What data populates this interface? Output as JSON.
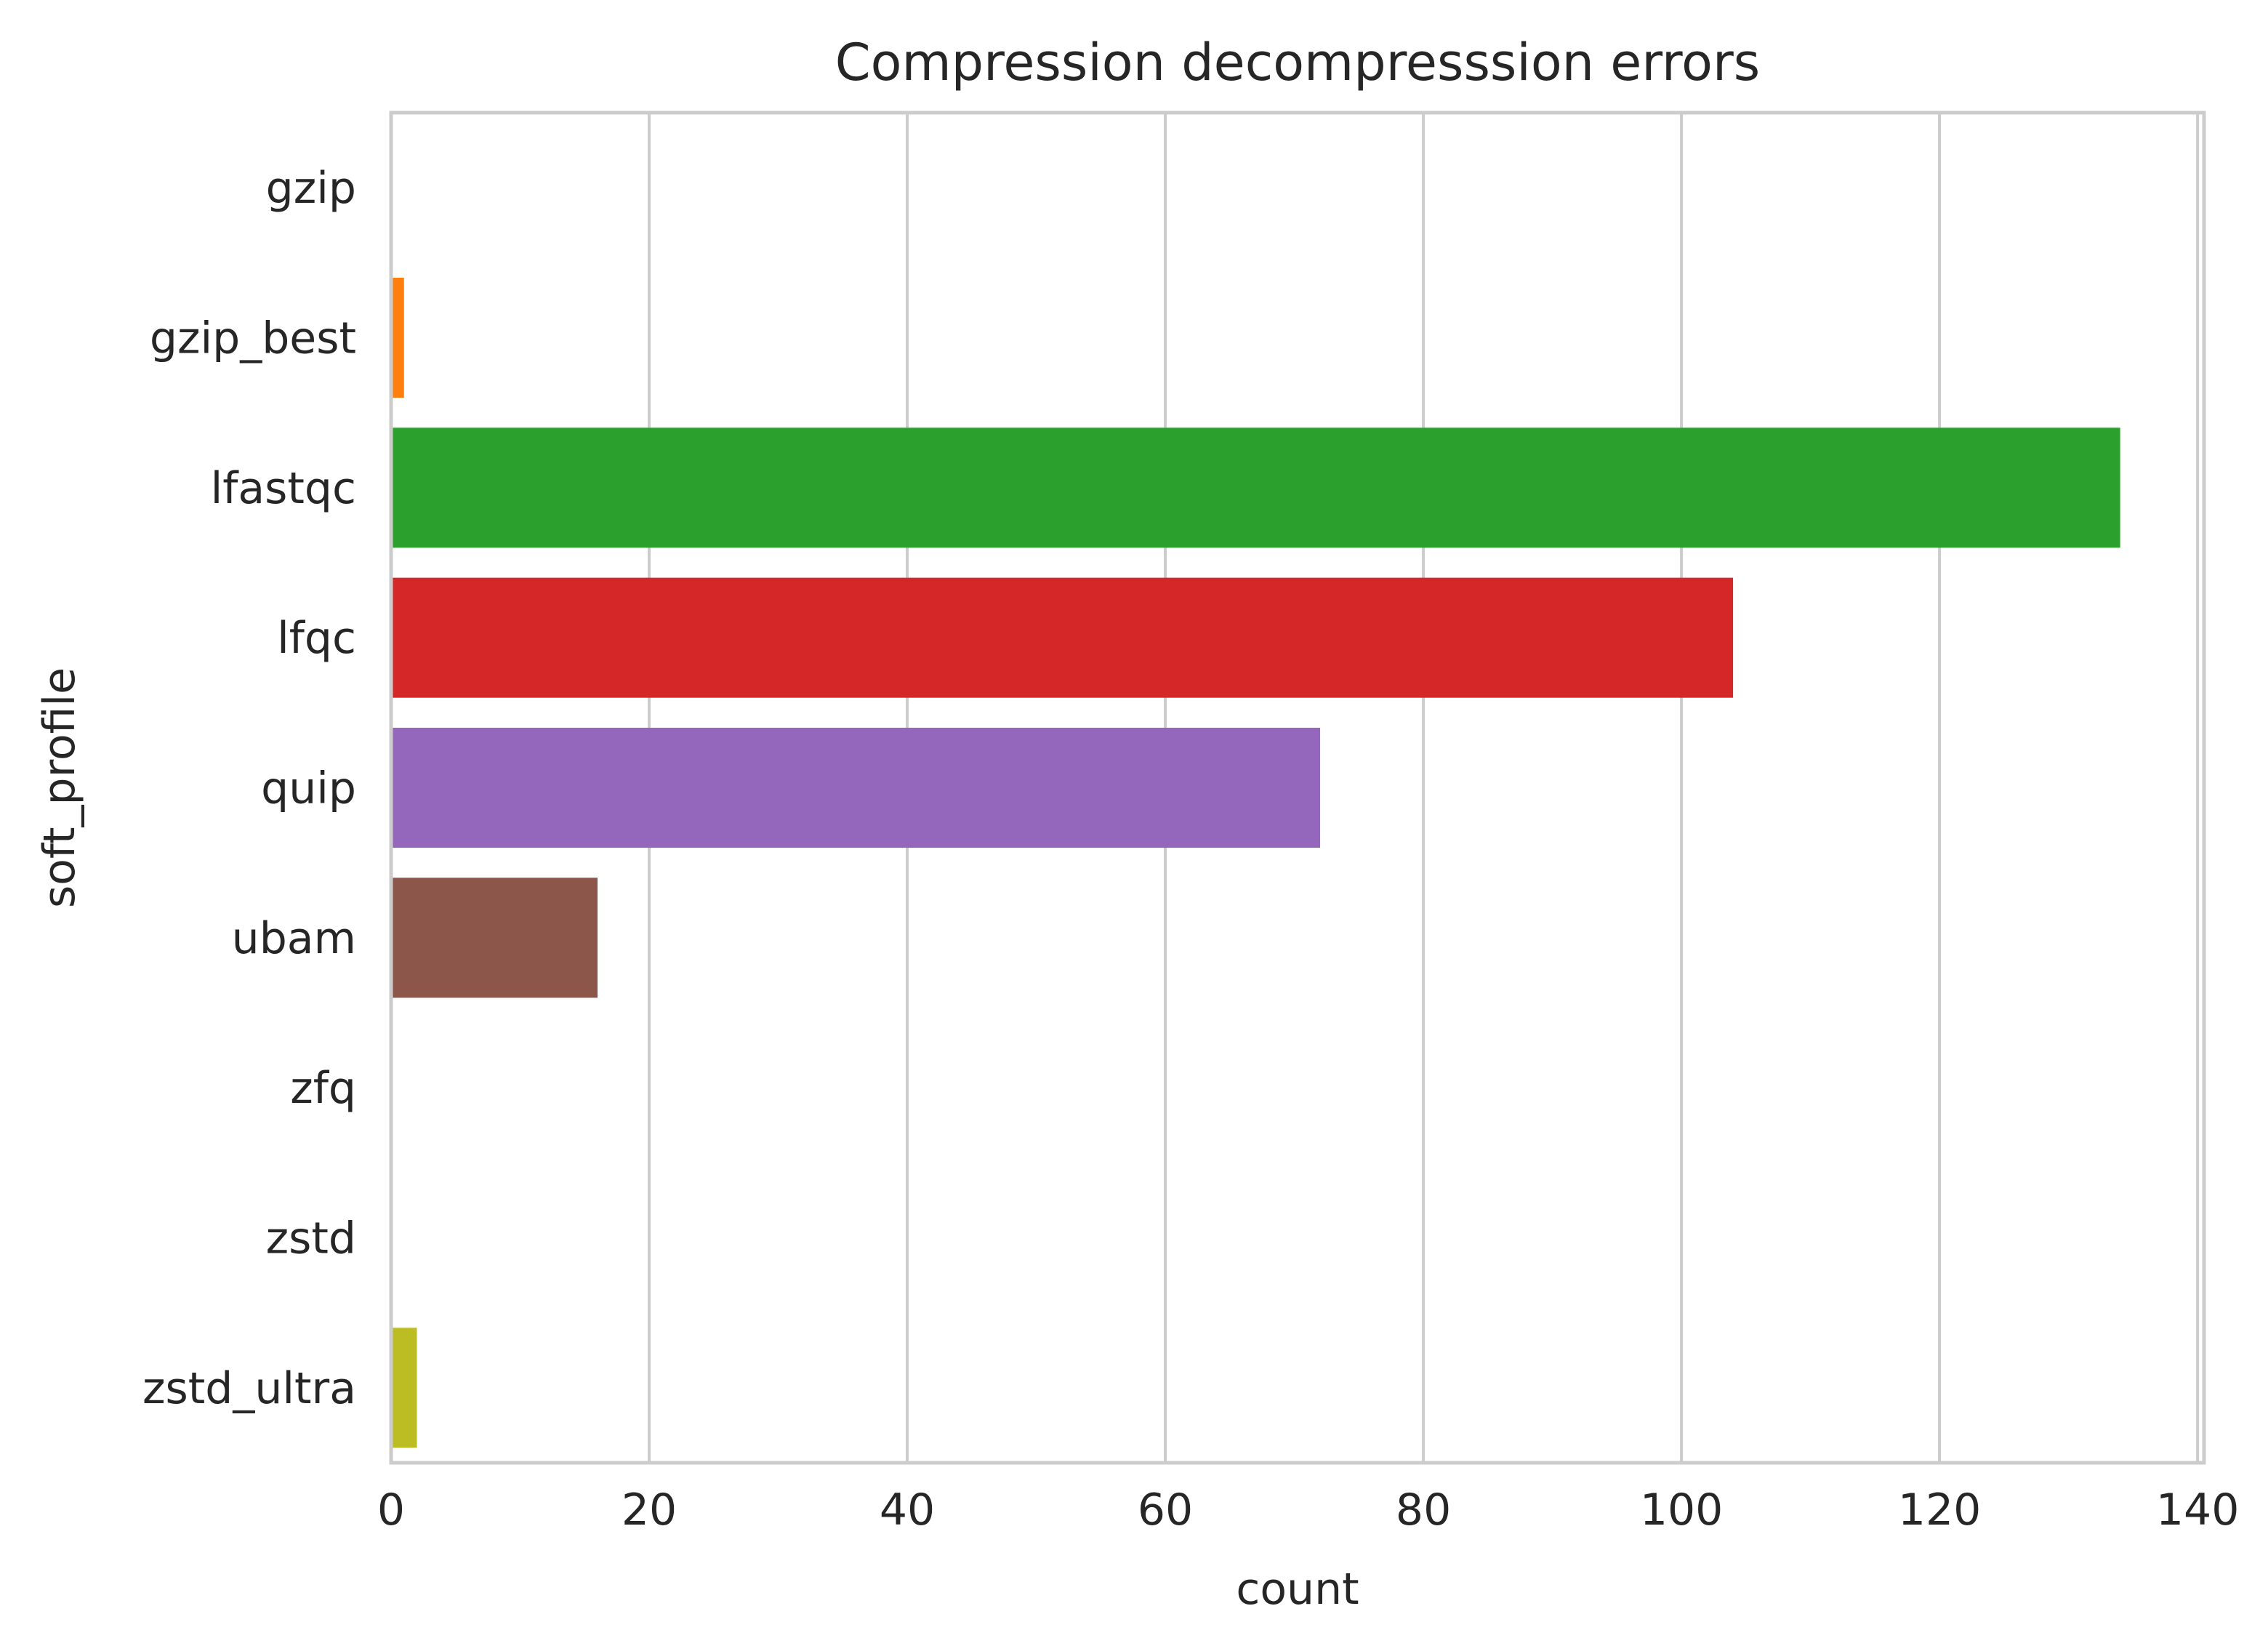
{
  "chart_data": {
    "type": "bar",
    "orientation": "horizontal",
    "title": "Compression decompresssion errors",
    "xlabel": "count",
    "ylabel": "soft_profile",
    "categories": [
      "gzip",
      "gzip_best",
      "lfastqc",
      "lfqc",
      "quip",
      "ubam",
      "zfq",
      "zstd",
      "zstd_ultra"
    ],
    "values": [
      0,
      1,
      134,
      104,
      72,
      16,
      0,
      0,
      2
    ],
    "colors": [
      "#1f77b4",
      "#ff7f0e",
      "#2ca02c",
      "#d62728",
      "#9467bd",
      "#8c564b",
      "#e377c2",
      "#7f7f7f",
      "#bcbd22"
    ],
    "xlim": [
      0,
      140.5
    ],
    "xticks": [
      0,
      20,
      40,
      60,
      80,
      100,
      120,
      140
    ],
    "xtick_labels": [
      "0",
      "20",
      "40",
      "60",
      "80",
      "100",
      "120",
      "140"
    ],
    "grid": true,
    "grid_axis": "x",
    "legend": false
  }
}
